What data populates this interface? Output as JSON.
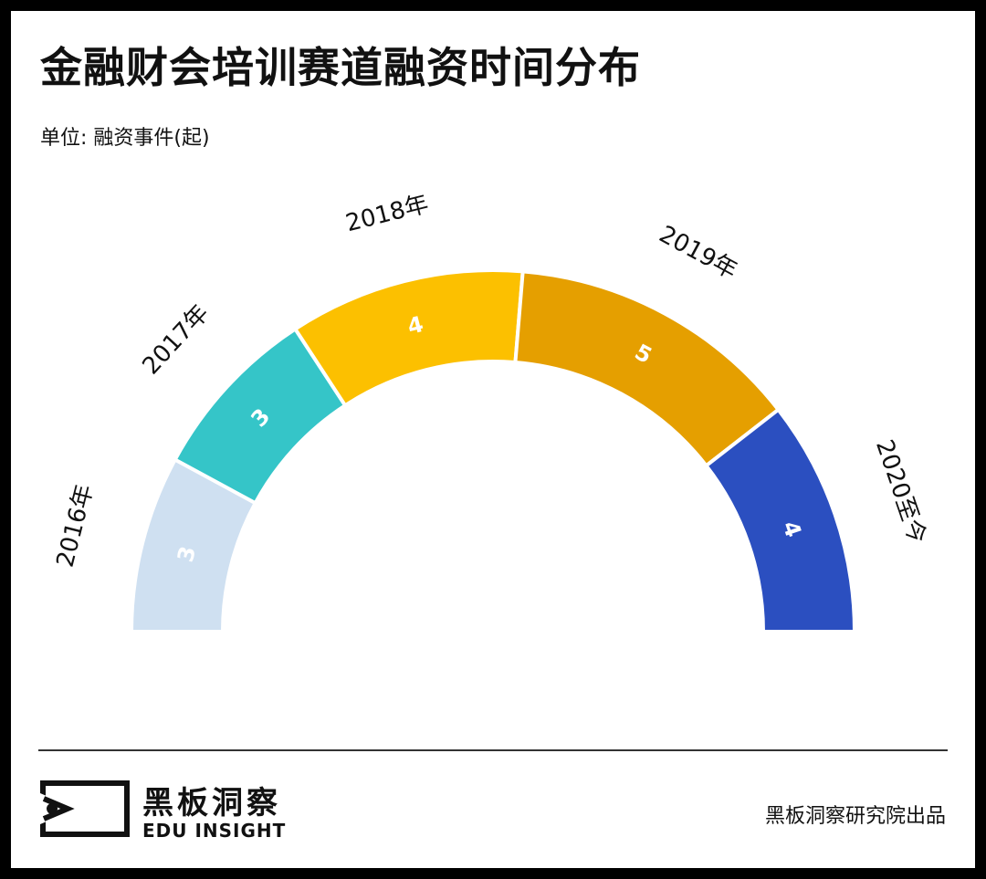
{
  "title": "金融财会培训赛道融资时间分布",
  "unit": "单位: 融资事件(起)",
  "chart_data": {
    "type": "pie",
    "subtype": "half-donut",
    "categories": [
      "2016年",
      "2017年",
      "2018年",
      "2019年",
      "2020至今"
    ],
    "values": [
      3,
      3,
      4,
      5,
      4
    ],
    "colors": [
      "#cfe0f1",
      "#35c5c8",
      "#fcc000",
      "#e59f00",
      "#2b4fc0"
    ],
    "label_colors": [
      "#ffffff",
      "#ffffff",
      "#ffffff",
      "#ffffff",
      "#ffffff"
    ]
  },
  "footer": {
    "brand_cn": "黑板洞察",
    "brand_en": "EDU INSIGHT",
    "credit": "黑板洞察研究院出品"
  }
}
